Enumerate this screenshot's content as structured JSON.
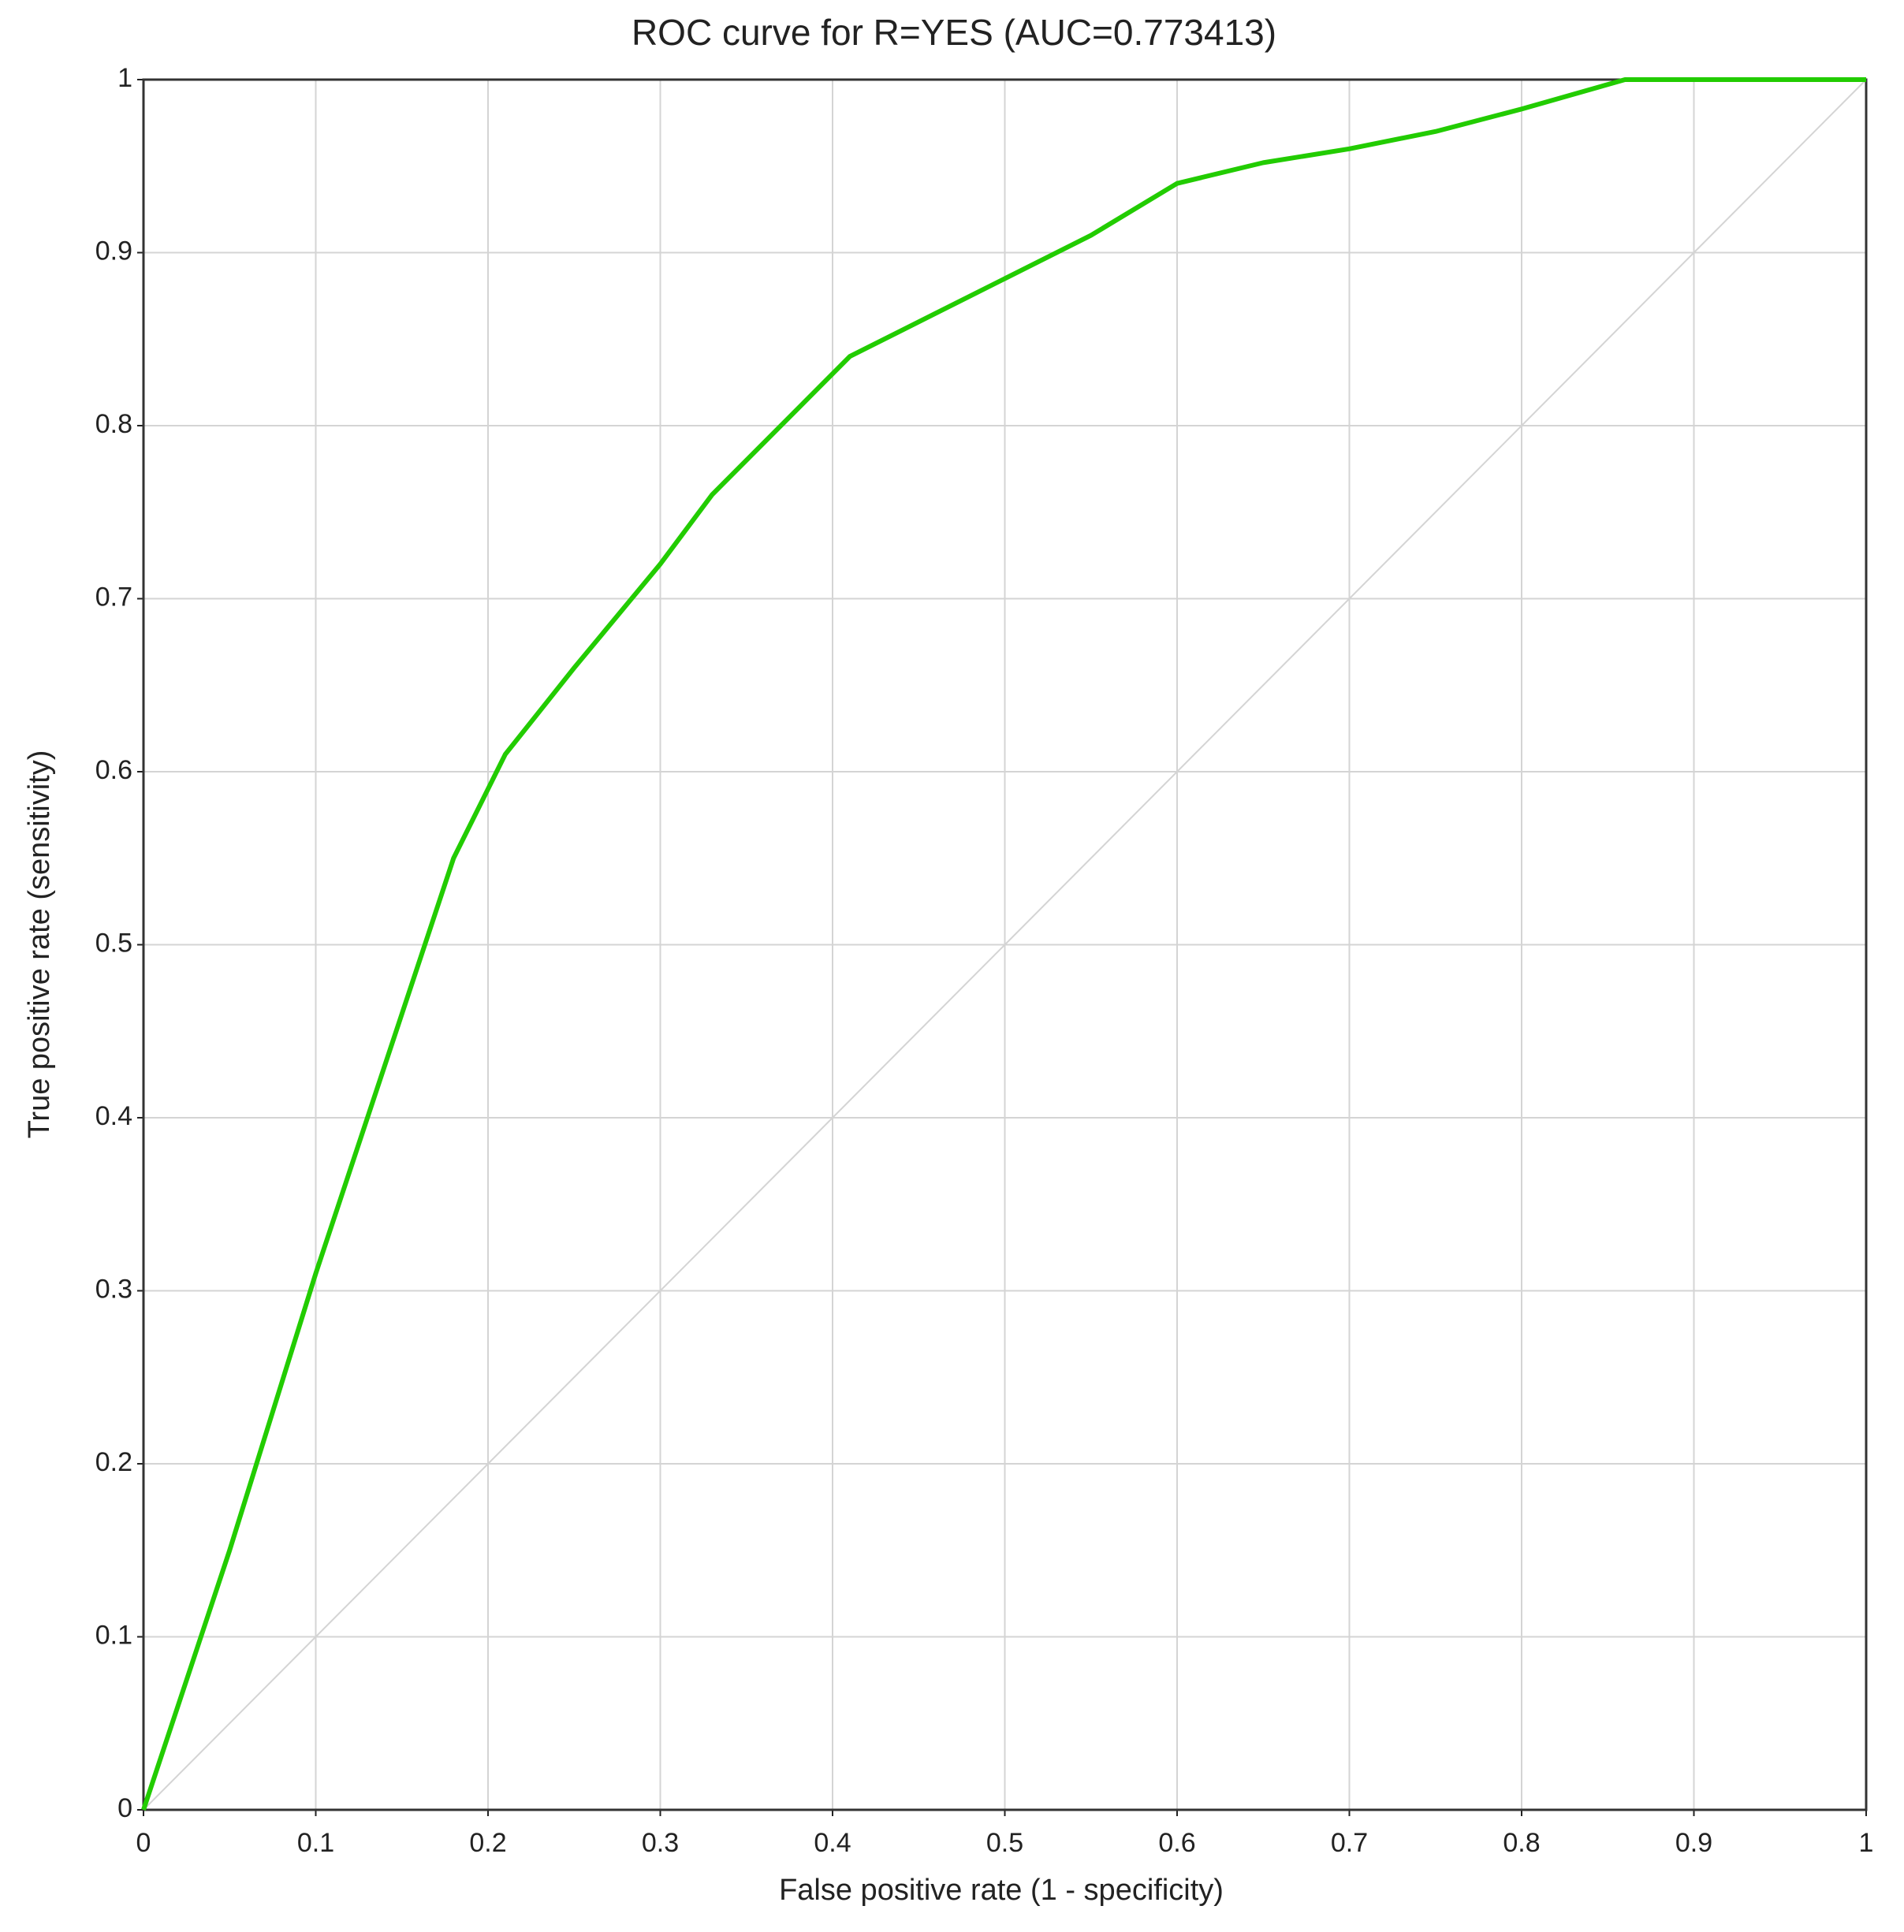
{
  "chart_data": {
    "type": "line",
    "title": "ROC curve for R=YES (AUC=0.773413)",
    "xlabel": "False positive rate (1 - specificity)",
    "ylabel": "True positive rate (sensitivity)",
    "x": [
      0,
      0.05,
      0.1,
      0.15,
      0.18,
      0.21,
      0.25,
      0.3,
      0.33,
      0.41,
      0.46,
      0.5,
      0.55,
      0.6,
      0.65,
      0.7,
      0.75,
      0.8,
      0.86,
      0.97,
      1
    ],
    "series": [
      {
        "color": "#22cc00",
        "values": [
          0,
          0.15,
          0.31,
          0.46,
          0.55,
          0.61,
          0.66,
          0.72,
          0.76,
          0.84,
          0.865,
          0.885,
          0.91,
          0.94,
          0.952,
          0.96,
          0.97,
          0.983,
          1,
          1,
          1
        ]
      }
    ],
    "xlim": [
      0,
      1
    ],
    "ylim": [
      0,
      1
    ],
    "xticks": [
      0,
      0.1,
      0.2,
      0.3,
      0.4,
      0.5,
      0.6,
      0.7,
      0.8,
      0.9,
      1
    ],
    "yticks": [
      0,
      0.1,
      0.2,
      0.3,
      0.4,
      0.5,
      0.6,
      0.7,
      0.8,
      0.9,
      1
    ],
    "grid": true
  }
}
